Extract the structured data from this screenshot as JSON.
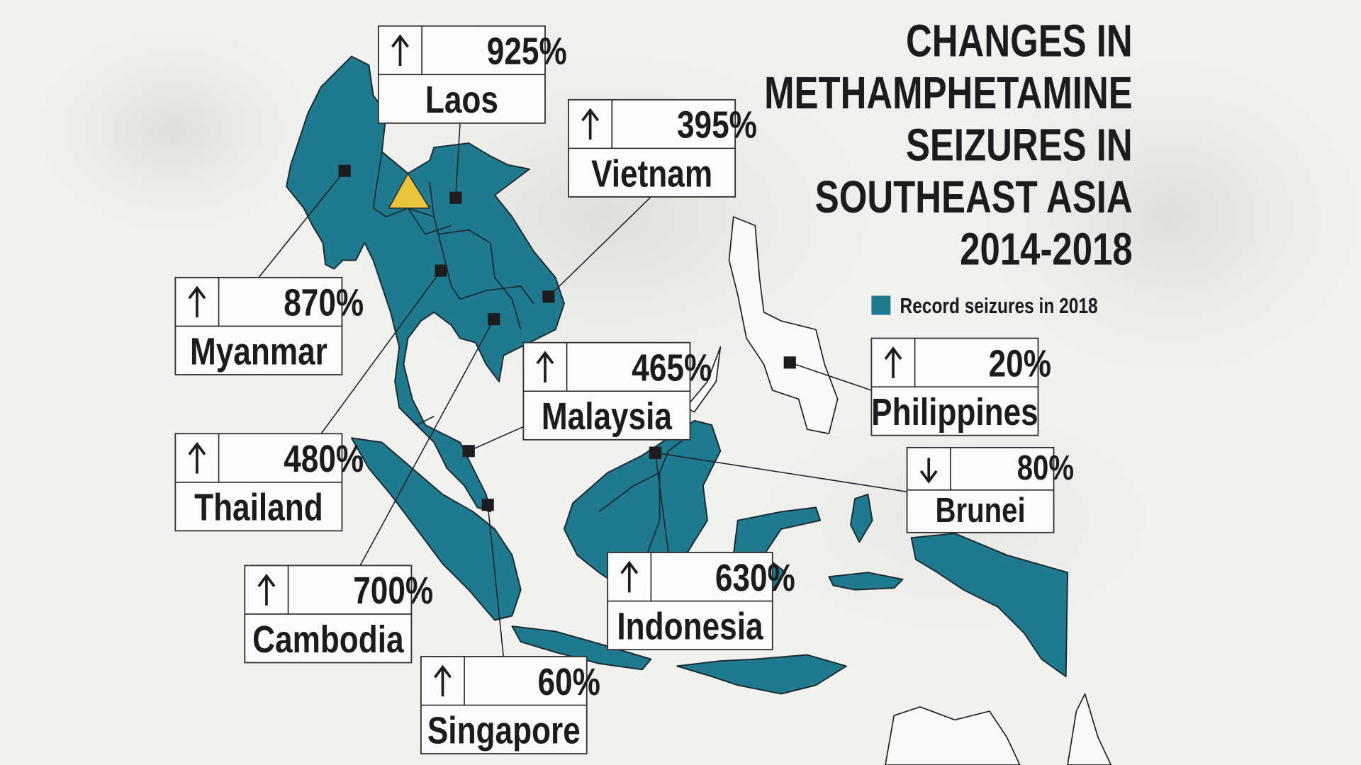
{
  "title": [
    "CHANGES IN",
    "METHAMPHETAMINE",
    "SEIZURES IN",
    "SOUTHEAST ASIA",
    "2014-2018"
  ],
  "legend": {
    "label": "Record seizures in 2018",
    "color": "#1f7a90"
  },
  "countries": [
    {
      "name": "Laos",
      "change": "925%",
      "direction": "up"
    },
    {
      "name": "Vietnam",
      "change": "395%",
      "direction": "up"
    },
    {
      "name": "Myanmar",
      "change": "870%",
      "direction": "up"
    },
    {
      "name": "Malaysia",
      "change": "465%",
      "direction": "up"
    },
    {
      "name": "Philippines",
      "change": "20%",
      "direction": "up"
    },
    {
      "name": "Brunei",
      "change": "80%",
      "direction": "down"
    },
    {
      "name": "Thailand",
      "change": "480%",
      "direction": "up"
    },
    {
      "name": "Indonesia",
      "change": "630%",
      "direction": "up"
    },
    {
      "name": "Cambodia",
      "change": "700%",
      "direction": "up"
    },
    {
      "name": "Singapore",
      "change": "60%",
      "direction": "up"
    }
  ]
}
